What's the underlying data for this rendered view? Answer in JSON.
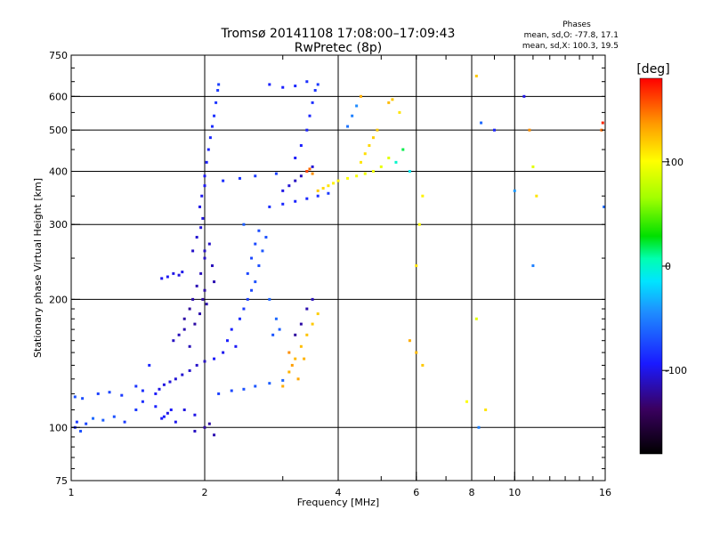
{
  "chart_data": {
    "type": "scatter",
    "title": "Tromsø 20141108 17:08:00–17:09:43",
    "subtitle": "RwPretec (8p)",
    "xlabel": "Frequency [MHz]",
    "ylabel": "Stationary phase Virtual Height [km]",
    "x_scale": "log",
    "y_scale": "log",
    "xlim": [
      1,
      16
    ],
    "ylim": [
      75,
      750
    ],
    "x_ticks": [
      1,
      2,
      4,
      6,
      8,
      10,
      16
    ],
    "y_ticks": [
      75,
      100,
      200,
      300,
      400,
      500,
      600,
      750
    ],
    "x_major_grid": [
      2,
      4,
      6,
      8,
      10
    ],
    "y_major_grid": [
      100,
      200,
      300,
      400,
      500,
      600
    ],
    "grid": true,
    "phase_info": {
      "heading": "Phases",
      "line_o": "mean, sd,O: -77.8, 17.1",
      "line_x": "mean, sd,X: 100.3, 19.5"
    },
    "colorbar": {
      "label": "[deg]",
      "min": -180,
      "max": 180,
      "ticks": [
        100,
        0,
        -100
      ],
      "position": "right"
    },
    "points": [
      [
        1.02,
        100,
        -85
      ],
      [
        1.03,
        103,
        -80
      ],
      [
        1.05,
        98,
        -70
      ],
      [
        1.08,
        102,
        -75
      ],
      [
        1.12,
        105,
        -60
      ],
      [
        1.18,
        104,
        -65
      ],
      [
        1.25,
        106,
        -70
      ],
      [
        1.32,
        103,
        -80
      ],
      [
        1.02,
        118,
        -70
      ],
      [
        1.06,
        117,
        -72
      ],
      [
        1.15,
        120,
        -78
      ],
      [
        1.22,
        121,
        -75
      ],
      [
        1.3,
        119,
        -80
      ],
      [
        1.4,
        125,
        -82
      ],
      [
        1.45,
        122,
        -85
      ],
      [
        1.5,
        140,
        -88
      ],
      [
        1.55,
        120,
        -95
      ],
      [
        1.58,
        123,
        -100
      ],
      [
        1.62,
        126,
        -102
      ],
      [
        1.67,
        128,
        -104
      ],
      [
        1.72,
        130,
        -105
      ],
      [
        1.78,
        133,
        -106
      ],
      [
        1.85,
        136,
        -107
      ],
      [
        1.92,
        140,
        -108
      ],
      [
        2.0,
        143,
        -110
      ],
      [
        1.6,
        105,
        -95
      ],
      [
        1.65,
        108,
        -100
      ],
      [
        1.72,
        103,
        -98
      ],
      [
        1.8,
        110,
        -102
      ],
      [
        1.9,
        107,
        -100
      ],
      [
        1.7,
        160,
        -110
      ],
      [
        1.75,
        165,
        -112
      ],
      [
        1.8,
        170,
        -115
      ],
      [
        1.85,
        155,
        -113
      ],
      [
        1.9,
        175,
        -118
      ],
      [
        1.95,
        185,
        -116
      ],
      [
        1.98,
        200,
        -120
      ],
      [
        2.0,
        210,
        -118
      ],
      [
        2.02,
        195,
        -115
      ],
      [
        1.8,
        180,
        -118
      ],
      [
        1.85,
        190,
        -120
      ],
      [
        1.88,
        200,
        -117
      ],
      [
        1.92,
        215,
        -114
      ],
      [
        1.96,
        230,
        -112
      ],
      [
        2.0,
        250,
        -110
      ],
      [
        2.05,
        270,
        -108
      ],
      [
        2.08,
        240,
        -112
      ],
      [
        2.1,
        220,
        -115
      ],
      [
        1.6,
        224,
        -98
      ],
      [
        1.65,
        226,
        -96
      ],
      [
        1.7,
        230,
        -100
      ],
      [
        1.75,
        228,
        -102
      ],
      [
        1.78,
        232,
        -99
      ],
      [
        1.88,
        260,
        -108
      ],
      [
        1.92,
        280,
        -106
      ],
      [
        1.96,
        295,
        -104
      ],
      [
        1.98,
        310,
        -102
      ],
      [
        2.0,
        260,
        -110
      ],
      [
        2.15,
        120,
        -78
      ],
      [
        2.3,
        122,
        -74
      ],
      [
        2.45,
        123,
        -70
      ],
      [
        2.6,
        125,
        -68
      ],
      [
        2.8,
        127,
        -65
      ],
      [
        3.0,
        129,
        -62
      ],
      [
        2.1,
        145,
        -95
      ],
      [
        2.2,
        150,
        -98
      ],
      [
        2.25,
        160,
        -92
      ],
      [
        2.3,
        170,
        -90
      ],
      [
        2.35,
        155,
        -96
      ],
      [
        2.4,
        180,
        -85
      ],
      [
        2.45,
        190,
        -80
      ],
      [
        2.5,
        200,
        -78
      ],
      [
        2.55,
        210,
        -75
      ],
      [
        2.6,
        220,
        -70
      ],
      [
        2.65,
        240,
        -72
      ],
      [
        2.7,
        260,
        -68
      ],
      [
        2.75,
        280,
        -70
      ],
      [
        2.5,
        230,
        -75
      ],
      [
        2.55,
        250,
        -74
      ],
      [
        2.6,
        270,
        -73
      ],
      [
        2.65,
        290,
        -72
      ],
      [
        2.45,
        300,
        -65
      ],
      [
        2.8,
        200,
        -62
      ],
      [
        2.9,
        180,
        -60
      ],
      [
        2.95,
        170,
        -64
      ],
      [
        2.85,
        165,
        -68
      ],
      [
        2.0,
        390,
        -95
      ],
      [
        2.02,
        420,
        -92
      ],
      [
        2.04,
        450,
        -90
      ],
      [
        2.06,
        480,
        -88
      ],
      [
        2.08,
        510,
        -86
      ],
      [
        2.1,
        540,
        -84
      ],
      [
        2.12,
        580,
        -82
      ],
      [
        2.14,
        620,
        -80
      ],
      [
        2.15,
        640,
        -78
      ],
      [
        1.95,
        330,
        -100
      ],
      [
        1.97,
        350,
        -98
      ],
      [
        2.0,
        370,
        -96
      ],
      [
        2.2,
        380,
        -85
      ],
      [
        2.4,
        385,
        -82
      ],
      [
        2.6,
        390,
        -80
      ],
      [
        2.9,
        395,
        -78
      ],
      [
        2.8,
        330,
        -85
      ],
      [
        3.0,
        335,
        -88
      ],
      [
        3.2,
        340,
        -90
      ],
      [
        3.4,
        345,
        -88
      ],
      [
        3.6,
        350,
        -85
      ],
      [
        3.8,
        355,
        -80
      ],
      [
        3.0,
        360,
        -100
      ],
      [
        3.1,
        370,
        -105
      ],
      [
        3.2,
        380,
        -110
      ],
      [
        3.3,
        390,
        -112
      ],
      [
        3.4,
        400,
        -108
      ],
      [
        3.5,
        410,
        -105
      ],
      [
        3.2,
        430,
        -95
      ],
      [
        3.3,
        460,
        -92
      ],
      [
        3.4,
        500,
        -90
      ],
      [
        3.45,
        540,
        -88
      ],
      [
        3.5,
        580,
        -85
      ],
      [
        3.55,
        620,
        -82
      ],
      [
        3.6,
        640,
        -80
      ],
      [
        2.8,
        640,
        -90
      ],
      [
        3.0,
        630,
        -92
      ],
      [
        3.2,
        635,
        -88
      ],
      [
        3.4,
        650,
        -85
      ],
      [
        3.4,
        400,
        160
      ],
      [
        3.45,
        405,
        150
      ],
      [
        3.5,
        395,
        140
      ],
      [
        3.6,
        360,
        120
      ],
      [
        3.7,
        365,
        115
      ],
      [
        3.8,
        370,
        110
      ],
      [
        3.9,
        375,
        105
      ],
      [
        4.0,
        380,
        105
      ],
      [
        4.2,
        385,
        100
      ],
      [
        4.4,
        390,
        98
      ],
      [
        4.6,
        395,
        96
      ],
      [
        4.8,
        400,
        95
      ],
      [
        5.0,
        410,
        92
      ],
      [
        5.2,
        430,
        90
      ],
      [
        4.5,
        420,
        110
      ],
      [
        4.6,
        440,
        112
      ],
      [
        4.7,
        460,
        115
      ],
      [
        4.8,
        480,
        118
      ],
      [
        4.9,
        500,
        120
      ],
      [
        4.2,
        510,
        -55
      ],
      [
        4.3,
        540,
        -50
      ],
      [
        4.4,
        570,
        -45
      ],
      [
        3.0,
        125,
        130
      ],
      [
        3.1,
        135,
        128
      ],
      [
        3.2,
        145,
        126
      ],
      [
        3.3,
        155,
        124
      ],
      [
        3.4,
        165,
        122
      ],
      [
        3.5,
        175,
        120
      ],
      [
        3.6,
        185,
        118
      ],
      [
        3.1,
        150,
        140
      ],
      [
        3.15,
        140,
        135
      ],
      [
        3.25,
        130,
        132
      ],
      [
        3.35,
        145,
        128
      ],
      [
        3.2,
        165,
        -120
      ],
      [
        3.3,
        175,
        -118
      ],
      [
        3.4,
        190,
        -115
      ],
      [
        3.5,
        200,
        -112
      ],
      [
        4.5,
        600,
        130
      ],
      [
        5.2,
        580,
        125
      ],
      [
        5.3,
        590,
        120
      ],
      [
        5.5,
        550,
        110
      ],
      [
        5.4,
        420,
        0
      ],
      [
        5.6,
        450,
        20
      ],
      [
        5.8,
        400,
        -10
      ],
      [
        6.0,
        240,
        110
      ],
      [
        6.1,
        300,
        100
      ],
      [
        6.2,
        350,
        105
      ],
      [
        8.2,
        670,
        120
      ],
      [
        8.4,
        520,
        -60
      ],
      [
        9.0,
        500,
        -90
      ],
      [
        10.0,
        360,
        -40
      ],
      [
        10.5,
        600,
        -100
      ],
      [
        10.8,
        500,
        140
      ],
      [
        11.0,
        410,
        90
      ],
      [
        11.2,
        350,
        110
      ],
      [
        11.0,
        240,
        -50
      ],
      [
        15.7,
        500,
        150
      ],
      [
        15.8,
        520,
        170
      ],
      [
        15.9,
        330,
        -60
      ],
      [
        5.8,
        160,
        130
      ],
      [
        6.0,
        150,
        125
      ],
      [
        6.2,
        140,
        120
      ],
      [
        7.8,
        115,
        100
      ],
      [
        8.3,
        100,
        -50
      ],
      [
        8.6,
        110,
        110
      ],
      [
        8.2,
        180,
        90
      ],
      [
        1.4,
        110,
        -80
      ],
      [
        1.45,
        115,
        -85
      ],
      [
        1.55,
        112,
        -90
      ],
      [
        1.62,
        106,
        -92
      ],
      [
        1.68,
        110,
        -95
      ],
      [
        2.0,
        100,
        -120
      ],
      [
        2.05,
        102,
        -118
      ],
      [
        2.1,
        96,
        -115
      ],
      [
        1.9,
        98,
        -110
      ]
    ]
  }
}
